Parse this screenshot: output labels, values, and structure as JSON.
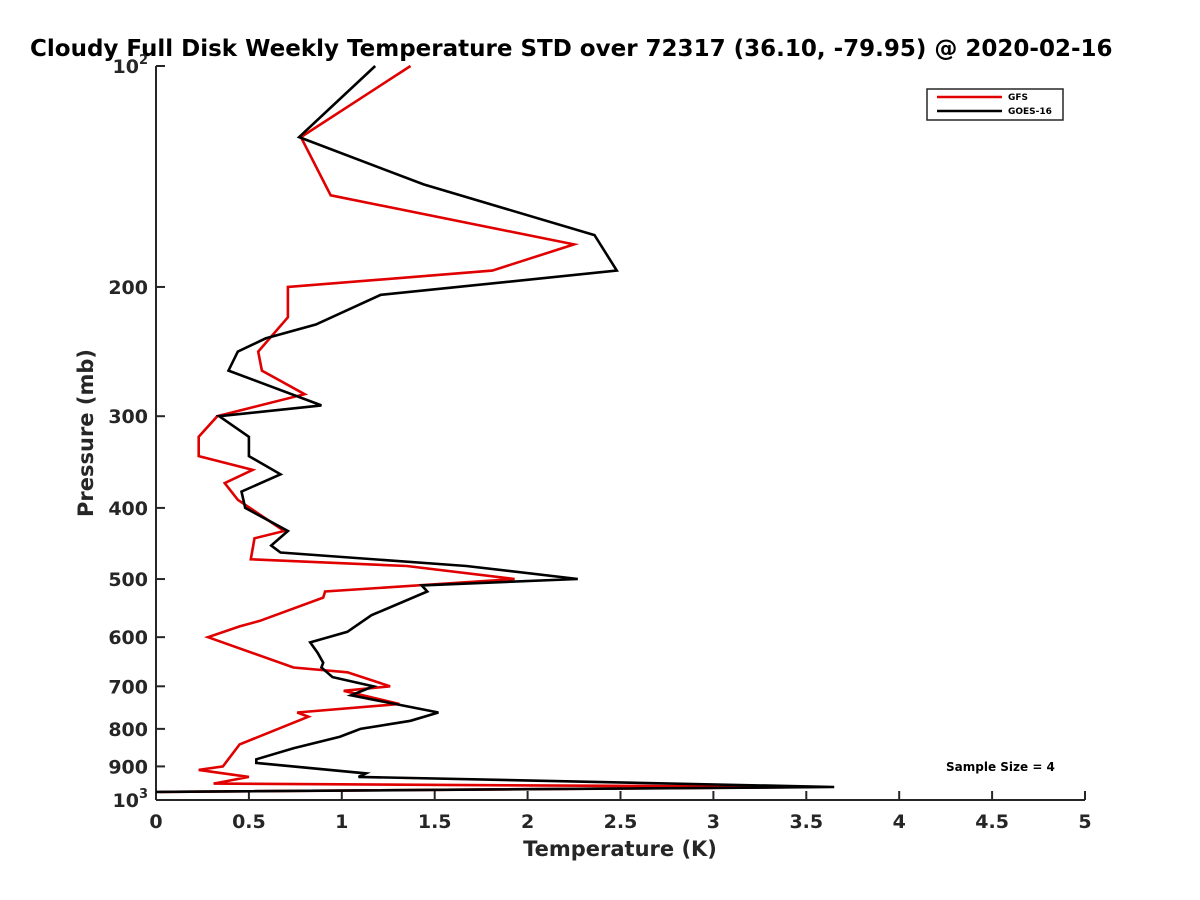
{
  "chart_data": {
    "type": "line",
    "title": "Cloudy Full Disk Weekly Temperature STD over 72317 (36.10, -79.95) @ 2020-02-16",
    "xlabel": "Temperature (K)",
    "ylabel": "Pressure (mb)",
    "xlim": [
      0,
      5
    ],
    "ylim": [
      100,
      1000
    ],
    "y_scale": "log",
    "y_reversed": true,
    "grid": false,
    "legend_position": "top-right",
    "x_ticks": [
      "0",
      "0.5",
      "1",
      "1.5",
      "2",
      "2.5",
      "3",
      "3.5",
      "4",
      "4.5",
      "5"
    ],
    "y_ticks": [
      {
        "value": 100,
        "base": "10",
        "exp": "2"
      },
      {
        "value": 200,
        "label": "200"
      },
      {
        "value": 300,
        "label": "300"
      },
      {
        "value": 400,
        "label": "400"
      },
      {
        "value": 500,
        "label": "500"
      },
      {
        "value": 600,
        "label": "600"
      },
      {
        "value": 700,
        "label": "700"
      },
      {
        "value": 800,
        "label": "800"
      },
      {
        "value": 900,
        "label": "900"
      },
      {
        "value": 1000,
        "base": "10",
        "exp": "3"
      }
    ],
    "annotation": "Sample Size = 4",
    "series": [
      {
        "name": "GFS",
        "color": "#e00000",
        "points": [
          [
            1.37,
            100
          ],
          [
            0.78,
            125
          ],
          [
            0.94,
            150
          ],
          [
            2.25,
            175
          ],
          [
            1.81,
            190
          ],
          [
            0.71,
            200
          ],
          [
            0.71,
            220
          ],
          [
            0.55,
            245
          ],
          [
            0.57,
            260
          ],
          [
            0.8,
            280
          ],
          [
            0.33,
            300
          ],
          [
            0.23,
            320
          ],
          [
            0.23,
            340
          ],
          [
            0.52,
            355
          ],
          [
            0.37,
            370
          ],
          [
            0.44,
            390
          ],
          [
            0.69,
            430
          ],
          [
            0.53,
            440
          ],
          [
            0.51,
            470
          ],
          [
            1.35,
            480
          ],
          [
            1.93,
            500
          ],
          [
            0.91,
            520
          ],
          [
            0.9,
            530
          ],
          [
            0.56,
            570
          ],
          [
            0.45,
            580
          ],
          [
            0.28,
            600
          ],
          [
            0.74,
            660
          ],
          [
            1.03,
            670
          ],
          [
            1.26,
            700
          ],
          [
            1.01,
            710
          ],
          [
            1.31,
            740
          ],
          [
            0.76,
            760
          ],
          [
            0.82,
            770
          ],
          [
            0.45,
            840
          ],
          [
            0.36,
            900
          ],
          [
            0.23,
            910
          ],
          [
            0.5,
            930
          ],
          [
            0.31,
            950
          ],
          [
            3.55,
            960
          ],
          [
            0.02,
            975
          ]
        ]
      },
      {
        "name": "GOES-16",
        "color": "#000000",
        "points": [
          [
            1.18,
            100
          ],
          [
            0.77,
            125
          ],
          [
            1.44,
            145
          ],
          [
            2.36,
            170
          ],
          [
            2.48,
            190
          ],
          [
            1.21,
            205
          ],
          [
            0.86,
            225
          ],
          [
            0.59,
            235
          ],
          [
            0.44,
            245
          ],
          [
            0.39,
            260
          ],
          [
            0.89,
            290
          ],
          [
            0.34,
            300
          ],
          [
            0.5,
            320
          ],
          [
            0.5,
            340
          ],
          [
            0.67,
            360
          ],
          [
            0.46,
            380
          ],
          [
            0.48,
            400
          ],
          [
            0.71,
            430
          ],
          [
            0.62,
            450
          ],
          [
            0.67,
            460
          ],
          [
            1.67,
            480
          ],
          [
            2.27,
            500
          ],
          [
            1.43,
            510
          ],
          [
            1.46,
            520
          ],
          [
            1.16,
            560
          ],
          [
            1.03,
            590
          ],
          [
            0.83,
            610
          ],
          [
            0.87,
            630
          ],
          [
            0.9,
            650
          ],
          [
            0.89,
            660
          ],
          [
            0.95,
            680
          ],
          [
            1.17,
            700
          ],
          [
            1.05,
            720
          ],
          [
            1.52,
            760
          ],
          [
            1.37,
            780
          ],
          [
            1.1,
            800
          ],
          [
            0.99,
            820
          ],
          [
            0.74,
            850
          ],
          [
            0.54,
            880
          ],
          [
            0.54,
            890
          ],
          [
            1.13,
            920
          ],
          [
            1.09,
            930
          ],
          [
            3.65,
            960
          ],
          [
            0.0,
            975
          ]
        ]
      }
    ]
  }
}
